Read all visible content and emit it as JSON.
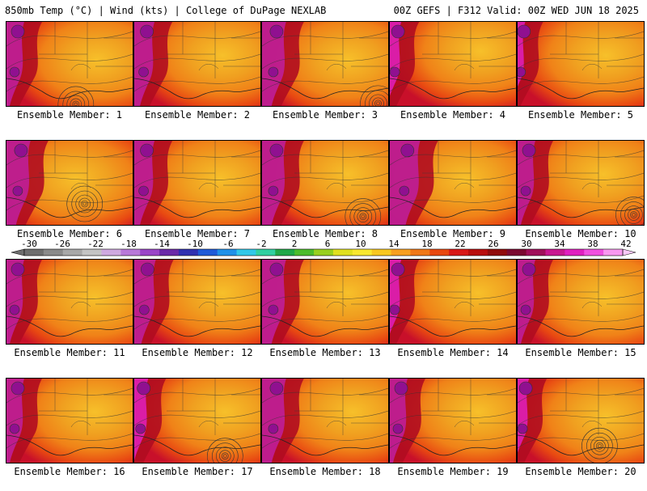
{
  "header": {
    "left": "850mb Temp (°C) | Wind (kts) | College of DuPage NEXLAB",
    "right": "00Z GEFS | F312 Valid: 00Z WED JUN 18 2025"
  },
  "members": [
    {
      "label": "Ensemble Member: 1",
      "warm_center": [
        0.72,
        0.45
      ],
      "west_shift": 0.0,
      "low_circle": [
        0.55,
        0.98
      ]
    },
    {
      "label": "Ensemble Member: 2",
      "warm_center": [
        0.7,
        0.4
      ],
      "west_shift": 0.02,
      "low_circle": null
    },
    {
      "label": "Ensemble Member: 3",
      "warm_center": [
        0.68,
        0.45
      ],
      "west_shift": 0.05,
      "low_circle": [
        0.92,
        0.97
      ]
    },
    {
      "label": "Ensemble Member: 4",
      "warm_center": [
        0.72,
        0.35
      ],
      "west_shift": -0.05,
      "low_circle": null
    },
    {
      "label": "Ensemble Member: 5",
      "warm_center": [
        0.7,
        0.4
      ],
      "west_shift": -0.08,
      "low_circle": null
    },
    {
      "label": "Ensemble Member: 6",
      "warm_center": [
        0.55,
        0.45
      ],
      "west_shift": 0.05,
      "low_circle": [
        0.62,
        0.75
      ]
    },
    {
      "label": "Ensemble Member: 7",
      "warm_center": [
        0.68,
        0.45
      ],
      "west_shift": 0.02,
      "low_circle": null
    },
    {
      "label": "Ensemble Member: 8",
      "warm_center": [
        0.68,
        0.4
      ],
      "west_shift": 0.05,
      "low_circle": [
        0.8,
        0.9
      ]
    },
    {
      "label": "Ensemble Member: 9",
      "warm_center": [
        0.6,
        0.45
      ],
      "west_shift": 0.1,
      "low_circle": null
    },
    {
      "label": "Ensemble Member: 10",
      "warm_center": [
        0.68,
        0.4
      ],
      "west_shift": 0.0,
      "low_circle": [
        0.92,
        0.88
      ]
    },
    {
      "label": "Ensemble Member: 11",
      "warm_center": [
        0.7,
        0.45
      ],
      "west_shift": 0.0,
      "low_circle": null
    },
    {
      "label": "Ensemble Member: 12",
      "warm_center": [
        0.7,
        0.4
      ],
      "west_shift": 0.03,
      "low_circle": null
    },
    {
      "label": "Ensemble Member: 13",
      "warm_center": [
        0.68,
        0.4
      ],
      "west_shift": 0.05,
      "low_circle": null
    },
    {
      "label": "Ensemble Member: 14",
      "warm_center": [
        0.7,
        0.4
      ],
      "west_shift": -0.05,
      "low_circle": null
    },
    {
      "label": "Ensemble Member: 15",
      "warm_center": [
        0.7,
        0.45
      ],
      "west_shift": 0.0,
      "low_circle": null
    },
    {
      "label": "Ensemble Member: 16",
      "warm_center": [
        0.7,
        0.4
      ],
      "west_shift": 0.0,
      "low_circle": null
    },
    {
      "label": "Ensemble Member: 17",
      "warm_center": [
        0.72,
        0.4
      ],
      "west_shift": -0.03,
      "low_circle": [
        0.72,
        0.92
      ]
    },
    {
      "label": "Ensemble Member: 18",
      "warm_center": [
        0.72,
        0.4
      ],
      "west_shift": 0.05,
      "low_circle": null
    },
    {
      "label": "Ensemble Member: 19",
      "warm_center": [
        0.7,
        0.4
      ],
      "west_shift": 0.0,
      "low_circle": null
    },
    {
      "label": "Ensemble Member: 20",
      "warm_center": [
        0.7,
        0.45
      ],
      "west_shift": -0.05,
      "low_circle": [
        0.65,
        0.8
      ]
    }
  ],
  "colorbar": {
    "labels": [
      "-30",
      "-26",
      "-22",
      "-18",
      "-14",
      "-10",
      "-6",
      "-2",
      "2",
      "6",
      "10",
      "14",
      "18",
      "22",
      "26",
      "30",
      "34",
      "38",
      "42"
    ],
    "colors": [
      "#6e6e6e",
      "#8a8a8a",
      "#a8a8a8",
      "#c4c4c4",
      "#cfa9e0",
      "#b878d8",
      "#9a45c8",
      "#6a2aa8",
      "#3030b0",
      "#1e5ad8",
      "#1e90e8",
      "#30c8e8",
      "#30d0a0",
      "#20a848",
      "#4cbc2c",
      "#98d020",
      "#e0e020",
      "#f8e830",
      "#f8c820",
      "#f8a020",
      "#f07818",
      "#e84810",
      "#d81818",
      "#b80e0e",
      "#900c0c",
      "#7a0a30",
      "#a0105a",
      "#c81890",
      "#e020c0",
      "#f050e0",
      "#f898f0"
    ]
  },
  "palette": {
    "hot": "#c8102a",
    "warm": "#f08218",
    "warmer": "#f0a020",
    "magenta": "#c020a0",
    "purple": "#901090",
    "contour": "#333333"
  }
}
